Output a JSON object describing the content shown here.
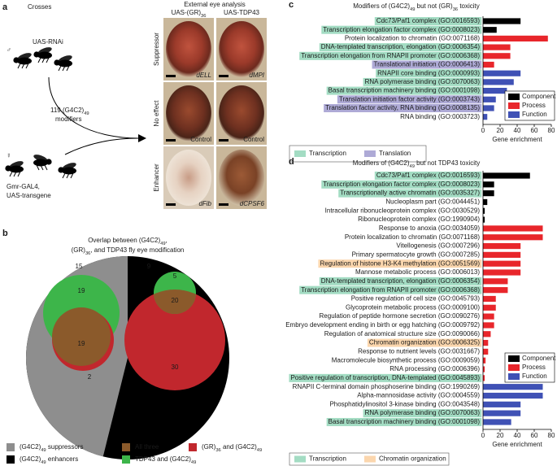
{
  "panel_a": {
    "letter": "a",
    "crosses": "Crosses",
    "eye_title": "External eye analysis",
    "col_labels": [
      [
        "UAS-(GR)",
        "36"
      ],
      [
        "UAS-TDP43"
      ]
    ],
    "row_labels": [
      "Suppressor",
      "No effect",
      "Enhancer"
    ],
    "photo_labels": [
      [
        "dELL",
        "dMPI"
      ],
      [
        "Control",
        "Control"
      ],
      [
        "dFib",
        "dCPSF6"
      ]
    ],
    "rnai": "UAS-RNAi",
    "male": "♂",
    "modifiers": [
      [
        "119 (G4C2)",
        "49"
      ],
      [
        "modifiers"
      ]
    ],
    "female": "☿",
    "driver": [
      "Gmr-GAL4,",
      "UAS-transgene"
    ]
  },
  "panel_b": {
    "letter": "b",
    "title": [
      [
        "Overlap between (G4C2)",
        "49",
        ","
      ],
      [
        "(GR)",
        "36",
        ", and TDP43 fly eye modification"
      ]
    ],
    "counts": [
      15,
      9,
      19,
      19,
      2,
      5,
      20,
      30
    ],
    "legend": [
      {
        "label": [
          "(G4C2)",
          "49",
          " suppressors"
        ],
        "color": "#8e8e8e"
      },
      {
        "label": [
          "All three"
        ],
        "color": "#8b5a2b"
      },
      {
        "label": [
          "(GR)",
          "36",
          " and (G4C2)",
          "49"
        ],
        "color": "#c1272d"
      },
      {
        "label": [
          "(G4C2)",
          "49",
          " enhancers"
        ],
        "color": "#000000"
      },
      {
        "label": [
          "TDP43 and (G4C2)",
          "49"
        ],
        "color": "#3db54a"
      }
    ]
  },
  "chart_data": [
    {
      "type": "bar",
      "letter": "c",
      "title": [
        "Modifiers of (G4C2)",
        "49",
        " but not (GR)",
        "36",
        " toxicity"
      ],
      "categories": [
        "Cdc73/Paf1 complex (GO:0016593)",
        "Transcription elongation factor complex (GO:0008023)",
        "Protein localization to chromatin (GO:0071168)",
        "DNA-templated transcription, elongation (GO:0006354)",
        "Transcription elongation from RNAPII promoter (GO:0006368)",
        "Translational initiation (GO:0006413)",
        "RNAPII core binding (GO:0000993)",
        "RNA polymerase binding (GO:0070063)",
        "Basal transcription machinery binding (GO:0001098)",
        "Translation initiation factor activity (GO:0003743)",
        "Translation factor activity, RNA binding (GO:0008135)",
        "RNA binding (GO:0003723)"
      ],
      "highlight": [
        0,
        0,
        null,
        0,
        0,
        1,
        0,
        0,
        0,
        1,
        1,
        null
      ],
      "highlight_legend": [
        {
          "name": "Transcription",
          "color": "#a3dcc3"
        },
        {
          "name": "Translation",
          "color": "#aeaad6"
        }
      ],
      "series": [
        {
          "name": "Component",
          "color": "#000000",
          "values": [
            44,
            16,
            null,
            null,
            null,
            null,
            null,
            null,
            null,
            null,
            null,
            null
          ]
        },
        {
          "name": "Process",
          "color": "#e8262b",
          "values": [
            null,
            null,
            76,
            32,
            32,
            13,
            null,
            null,
            null,
            null,
            null,
            null
          ]
        },
        {
          "name": "Function",
          "color": "#3f51b5",
          "values": [
            null,
            null,
            null,
            null,
            null,
            null,
            44,
            36,
            28,
            15,
            13,
            5
          ]
        }
      ],
      "xlabel": "Gene enrichment",
      "xlim": [
        0,
        80
      ],
      "xticks": [
        0,
        20,
        40,
        60,
        80
      ]
    },
    {
      "type": "bar",
      "letter": "d",
      "title": [
        "Modifiers of (G4C2)",
        "49",
        " but not TDP43 toxicity"
      ],
      "categories": [
        "Cdc73/Paf1 complex (GO:0016593)",
        "Transcription elongation factor complex (GO:0008023)",
        "Transcriptionally active chromatin (GO:0035327)",
        "Nucleoplasm part (GO:0044451)",
        "Intracellular ribonucleoprotein complex (GO:0030529)",
        "Ribonucleoprotein complex (GO:1990904)",
        "Response to anoxia (GO:0034059)",
        "Protein localization to chromatin (GO:0071168)",
        "Vitellogenesis (GO:0007296)",
        "Primary spermatocyte growth (GO:0007285)",
        "Regulation of histone H3-K4 methylation (GO:0051569)",
        "Mannose metabolic process (GO:0006013)",
        "DNA-templated transcription, elongation (GO:0006354)",
        "Transcription elongation from RNAPII promoter (GO:0006368)",
        "Positive regulation of cell size (GO:0045793)",
        "Glycoprotein metabolic process (GO:0009100)",
        "Regulation of peptide hormone secretion (GO:0090276)",
        "Embryo development ending in birth or egg hatching (GO:0009792)",
        "Regulation of anatomical structure size (GO:0090066)",
        "Chromatin organization (GO:0006325)",
        "Response to nutrient levels (GO:0031667)",
        "Macromolecule biosynthetic process (GO:0009059)",
        "RNA processing (GO:0006396)",
        "Positive regulation of transcription, DNA-templated (GO:0045893)",
        "RNAPII C-terminal domain phosphoserine binding (GO:1990269)",
        "Alpha-mannosidase activity (GO:0004559)",
        "Phosphatidylinositol 3-kinase binding (GO:0043548)",
        "RNA polymerase binding (GO:0070063)",
        "Basal transcription machinery binding (GO:0001098)"
      ],
      "highlight": [
        0,
        0,
        0,
        null,
        null,
        null,
        null,
        null,
        null,
        null,
        1,
        null,
        0,
        0,
        null,
        null,
        null,
        null,
        null,
        1,
        null,
        null,
        null,
        0,
        null,
        null,
        null,
        0,
        0
      ],
      "highlight_legend": [
        {
          "name": "Transcription",
          "color": "#a3dcc3"
        },
        {
          "name": "Chromatin organization",
          "color": "#fbd6ad"
        }
      ],
      "series": [
        {
          "name": "Component",
          "color": "#000000",
          "values": [
            55,
            13,
            13,
            5,
            2,
            2,
            null,
            null,
            null,
            null,
            null,
            null,
            null,
            null,
            null,
            null,
            null,
            null,
            null,
            null,
            null,
            null,
            null,
            null,
            null,
            null,
            null,
            null,
            null
          ]
        },
        {
          "name": "Process",
          "color": "#e8262b",
          "values": [
            null,
            null,
            null,
            null,
            null,
            null,
            70,
            70,
            44,
            44,
            44,
            44,
            29,
            29,
            15,
            15,
            13,
            13,
            9,
            6,
            6,
            3,
            2,
            2,
            null,
            null,
            null,
            null,
            null
          ]
        },
        {
          "name": "Function",
          "color": "#3f51b5",
          "values": [
            null,
            null,
            null,
            null,
            null,
            null,
            null,
            null,
            null,
            null,
            null,
            null,
            null,
            null,
            null,
            null,
            null,
            null,
            null,
            null,
            null,
            null,
            null,
            null,
            70,
            70,
            44,
            44,
            33
          ]
        }
      ],
      "xlabel": "Gene enrichment",
      "xlim": [
        0,
        80
      ],
      "xticks": [
        0,
        20,
        40,
        60,
        80
      ]
    }
  ]
}
